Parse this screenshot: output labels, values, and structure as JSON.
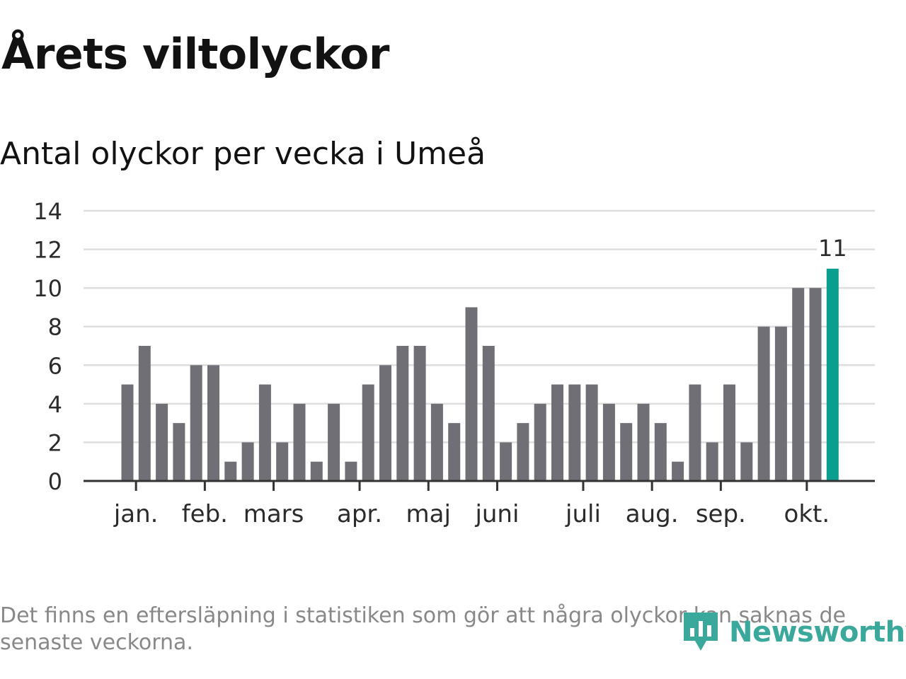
{
  "header": {
    "title": "Årets viltolyckor",
    "subtitle": "Antal olyckor per vecka i Umeå"
  },
  "footer": {
    "note": "Det finns en eftersläpning i statistiken som gör att några olyckor kan saknas de senaste veckorna.",
    "brand": "Newsworthy"
  },
  "colors": {
    "bar": "#706f76",
    "highlight": "#0a9e8e",
    "grid": "#dedede",
    "axis": "#333333",
    "brand": "#3aa99b"
  },
  "chart_data": {
    "type": "bar",
    "title": "Årets viltolyckor",
    "subtitle": "Antal olyckor per vecka i Umeå",
    "xlabel": "",
    "ylabel": "",
    "ylim": [
      0,
      14
    ],
    "yticks": [
      0,
      2,
      4,
      6,
      8,
      10,
      12,
      14
    ],
    "grid": true,
    "values": [
      5,
      7,
      4,
      3,
      6,
      6,
      1,
      2,
      5,
      2,
      4,
      1,
      4,
      1,
      5,
      6,
      7,
      7,
      4,
      3,
      9,
      7,
      2,
      3,
      4,
      5,
      5,
      5,
      4,
      3,
      4,
      3,
      1,
      5,
      2,
      5,
      2,
      8,
      8,
      10,
      10,
      11
    ],
    "highlight_index": 41,
    "data_labels": [
      {
        "index": 41,
        "text": "11"
      }
    ],
    "month_ticks": [
      {
        "label": "jan.",
        "bar": 0.5
      },
      {
        "label": "feb.",
        "bar": 4.5
      },
      {
        "label": "mars",
        "bar": 8.5
      },
      {
        "label": "apr.",
        "bar": 13.5
      },
      {
        "label": "maj",
        "bar": 17.5
      },
      {
        "label": "juni",
        "bar": 21.5
      },
      {
        "label": "juli",
        "bar": 26.5
      },
      {
        "label": "aug.",
        "bar": 30.5
      },
      {
        "label": "sep.",
        "bar": 34.5
      },
      {
        "label": "okt.",
        "bar": 39.5
      }
    ]
  }
}
